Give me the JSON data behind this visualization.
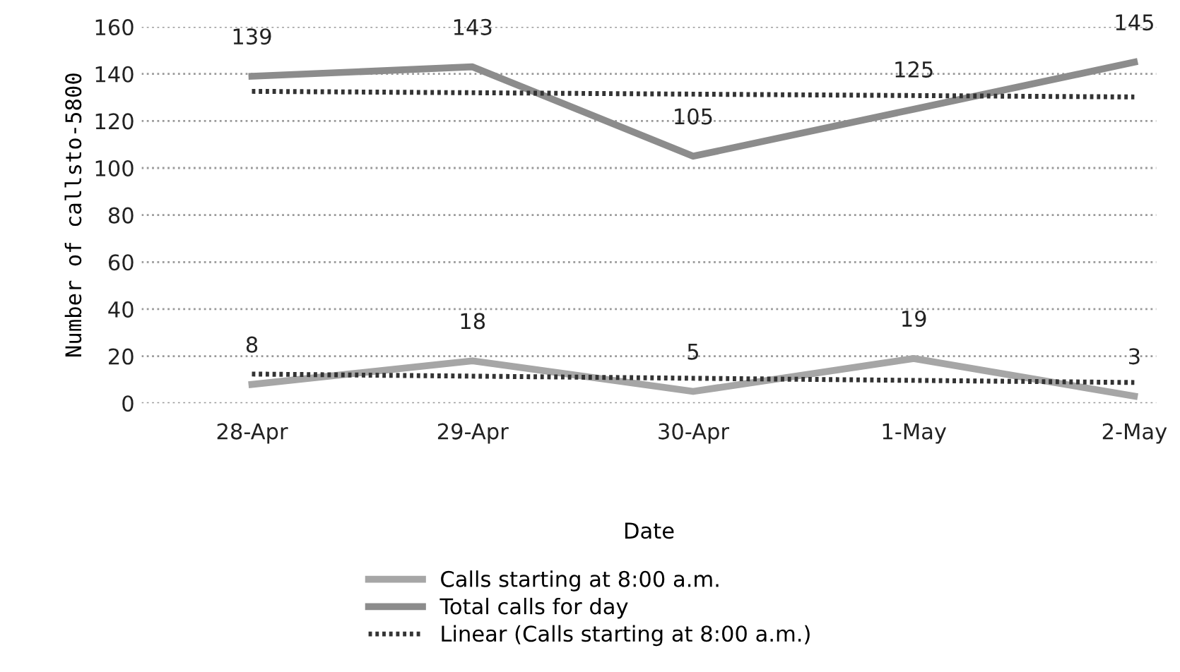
{
  "chart_data": {
    "type": "line",
    "xlabel": "Date",
    "ylabel": "Number of callsto-5800",
    "categories": [
      "28-Apr",
      "29-Apr",
      "30-Apr",
      "1-May",
      "2-May"
    ],
    "series": [
      {
        "name": "Calls starting at 8:00 a.m.",
        "color": "#a6a6a6",
        "values": [
          8,
          18,
          5,
          19,
          3
        ],
        "value_labels": [
          "8",
          "18",
          "5",
          "19",
          "3"
        ]
      },
      {
        "name": "Total calls for day",
        "color": "#8c8c8c",
        "values": [
          139,
          143,
          105,
          125,
          145
        ],
        "value_labels": [
          "139",
          "143",
          "105",
          "125",
          "145"
        ]
      },
      {
        "name": "Linear (Calls starting at 8:00 a.m.)",
        "color": "#333333",
        "line_style": "dotted",
        "values": [
          12.4,
          11.5,
          10.6,
          9.7,
          8.8
        ]
      },
      {
        "color": "#333333",
        "line_style": "dotted",
        "values": [
          132.6,
          132,
          131.4,
          130.8,
          130.2
        ]
      }
    ],
    "ylim": [
      0,
      160
    ],
    "yticks": [
      0,
      20,
      40,
      60,
      80,
      100,
      120,
      140,
      160
    ],
    "grid": "y",
    "legend": "bottom",
    "marker": "none",
    "line_style": "solid"
  }
}
